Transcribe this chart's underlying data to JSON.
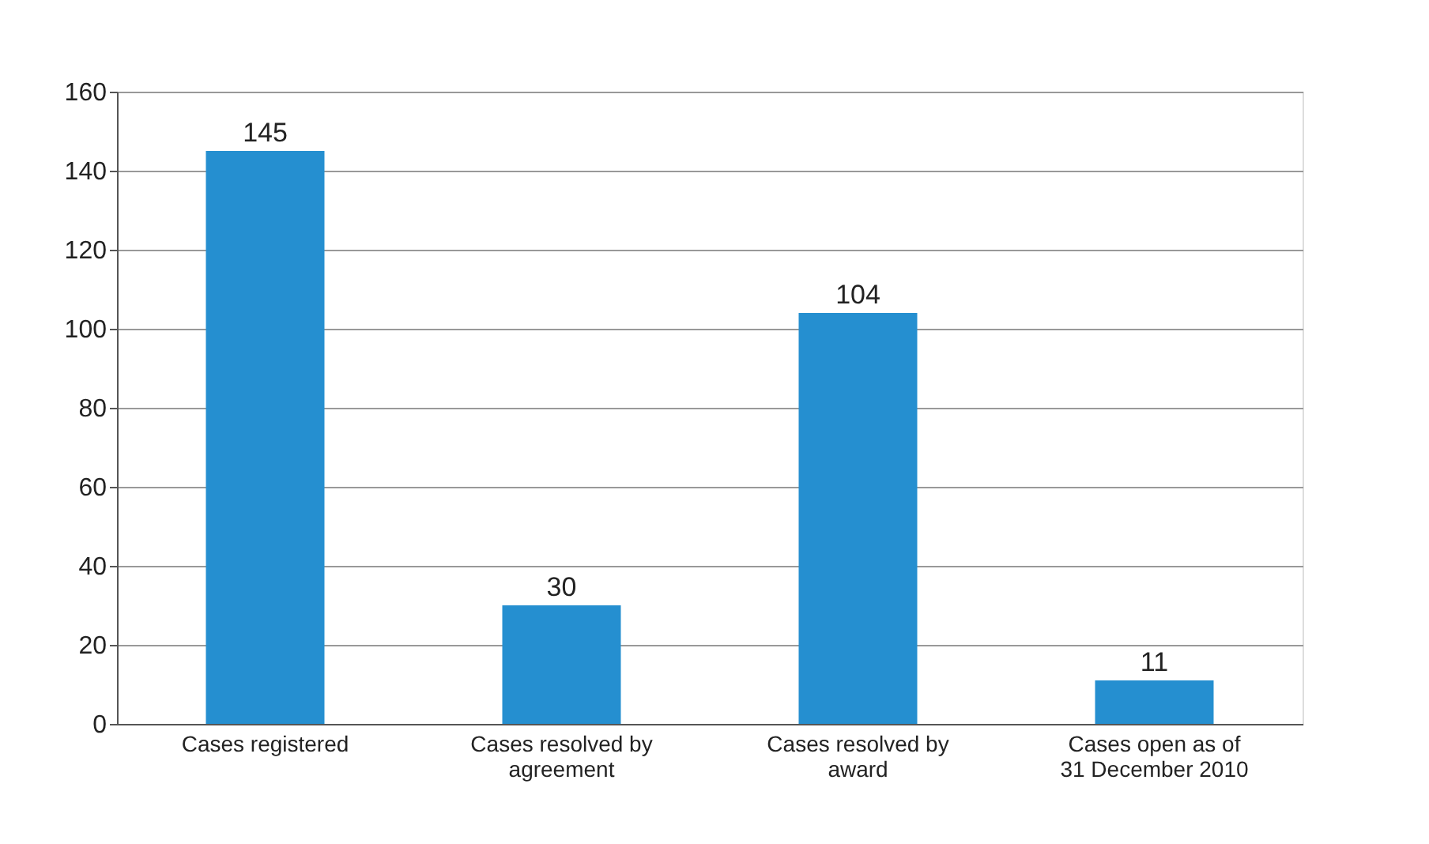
{
  "chart_data": {
    "type": "bar",
    "categories": [
      "Cases registered",
      "Cases resolved by\nagreement",
      "Cases resolved by\naward",
      "Cases open as of\n31 December 2010"
    ],
    "values": [
      145,
      30,
      104,
      11
    ],
    "color": "#258fd0",
    "ylim": [
      0,
      160
    ],
    "yticks": [
      0,
      20,
      40,
      60,
      80,
      100,
      120,
      140,
      160
    ],
    "grid": "y",
    "data_labels": true
  }
}
